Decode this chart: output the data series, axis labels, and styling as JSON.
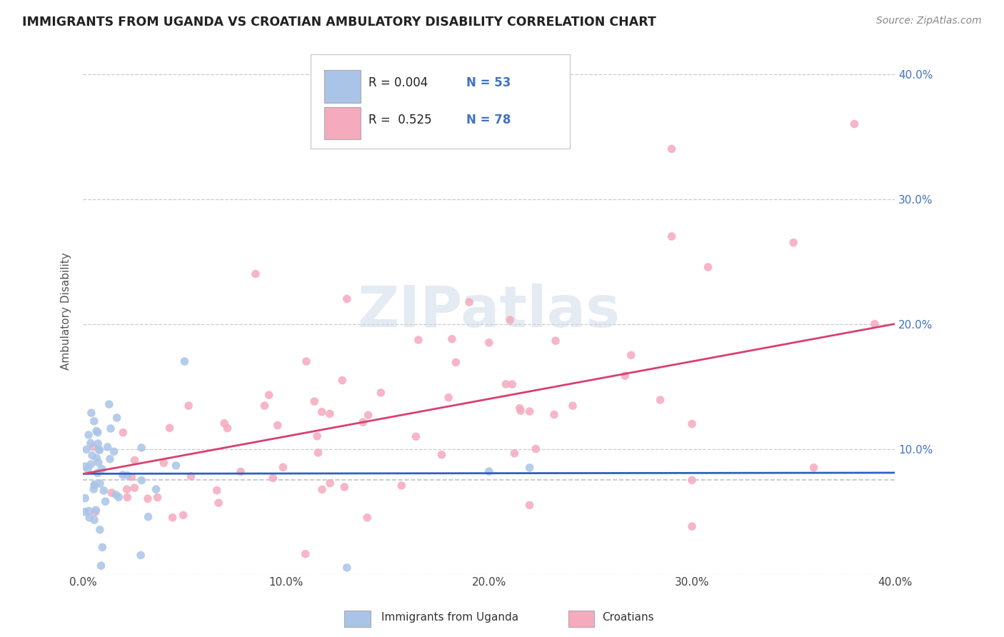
{
  "title": "IMMIGRANTS FROM UGANDA VS CROATIAN AMBULATORY DISABILITY CORRELATION CHART",
  "source": "Source: ZipAtlas.com",
  "ylabel": "Ambulatory Disability",
  "legend_label1": "Immigrants from Uganda",
  "legend_label2": "Croatians",
  "r1": "0.004",
  "n1": "53",
  "r2": "0.525",
  "n2": "78",
  "color_uganda": "#aac4e8",
  "color_croatia": "#f5aabe",
  "line_color_uganda": "#3060c0",
  "line_color_croatia": "#d84070",
  "background_color": "#ffffff",
  "xlim": [
    0.0,
    0.4
  ],
  "ylim": [
    0.0,
    0.42
  ],
  "dashed_line_y": 0.075,
  "yticks": [
    0.0,
    0.1,
    0.2,
    0.3,
    0.4
  ],
  "ytick_labels_right": [
    "",
    "10.0%",
    "20.0%",
    "30.0%",
    "40.0%"
  ],
  "xticks": [
    0.0,
    0.1,
    0.2,
    0.3,
    0.4
  ],
  "xtick_labels": [
    "0.0%",
    "10.0%",
    "20.0%",
    "30.0%",
    "40.0%"
  ]
}
